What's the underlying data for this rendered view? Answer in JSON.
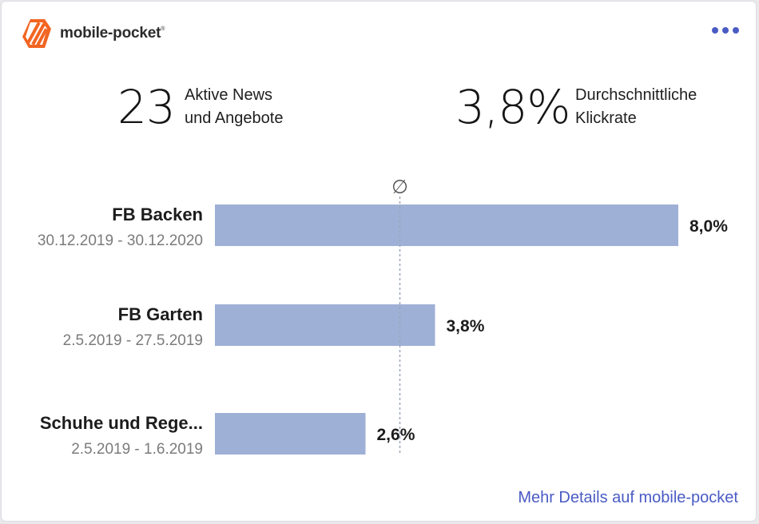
{
  "header": {
    "logo_text": "mobile-pocket",
    "logo_mark": "®",
    "logo_color": "#f26522",
    "menu_icon": "more-horizontal-icon"
  },
  "kpis": [
    {
      "value": "23",
      "label": "Aktive News\nund Angebote"
    },
    {
      "value": "3,8%",
      "label": "Durchschnittliche\nKlickrate"
    }
  ],
  "chart_data": {
    "type": "bar",
    "orientation": "horizontal",
    "categories": [
      "FB Backen",
      "FB Garten",
      "Schuhe und Rege..."
    ],
    "date_ranges": [
      "30.12.2019 - 30.12.2020",
      "2.5.2019 - 27.5.2019",
      "2.5.2019 - 1.6.2019"
    ],
    "values": [
      8.0,
      3.8,
      2.6
    ],
    "value_labels": [
      "8,0%",
      "3,8%",
      "2,6%"
    ],
    "average": 3.2,
    "average_symbol": "∅",
    "bar_color": "#9fb0d6",
    "average_line_color": "#9aa6bb",
    "xlim": [
      0,
      8.0
    ],
    "grid": false
  },
  "footer": {
    "link_text": "Mehr Details auf mobile-pocket",
    "link_color": "#4a5bc4"
  }
}
